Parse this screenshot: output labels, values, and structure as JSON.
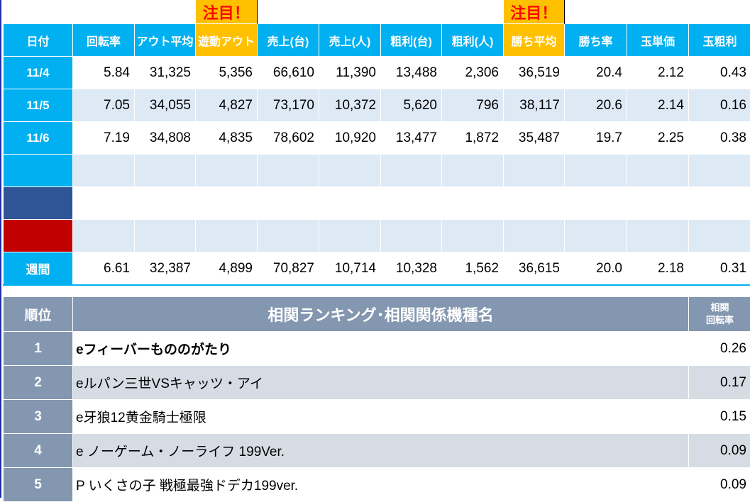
{
  "notes": {
    "left": "注目！",
    "right": "注目！"
  },
  "headers": [
    "日付",
    "回転率",
    "アウト平均",
    "遊動アウト",
    "売上(台)",
    "売上(人)",
    "粗利(台)",
    "粗利(人)",
    "勝ち平均",
    "勝ち率",
    "玉単価",
    "玉粗利"
  ],
  "rows": [
    {
      "date": "11/4",
      "values": [
        "5.84",
        "31,325",
        "5,356",
        "66,610",
        "11,390",
        "13,488",
        "2,306",
        "36,519",
        "20.4",
        "2.12",
        "0.43"
      ]
    },
    {
      "date": "11/5",
      "values": [
        "7.05",
        "34,055",
        "4,827",
        "73,170",
        "10,372",
        "5,620",
        "796",
        "38,117",
        "20.6",
        "2.14",
        "0.16"
      ]
    },
    {
      "date": "11/6",
      "values": [
        "7.19",
        "34,808",
        "4,835",
        "78,602",
        "10,920",
        "13,477",
        "1,872",
        "35,487",
        "19.7",
        "2.25",
        "0.38"
      ]
    }
  ],
  "weekly": {
    "label": "週間",
    "values": [
      "6.61",
      "32,387",
      "4,899",
      "70,827",
      "10,714",
      "10,328",
      "1,562",
      "36,615",
      "20.0",
      "2.18",
      "0.31"
    ]
  },
  "ranking": {
    "rank_header": "順位",
    "title": "相関ランキング･相関関係機種名",
    "value_header_1": "相関",
    "value_header_2": "回転率",
    "items": [
      {
        "rank": "1",
        "name": "eフィーバーもののがたり",
        "value": "0.26"
      },
      {
        "rank": "2",
        "name": "eルパン三世VSキャッツ・アイ",
        "value": "0.17"
      },
      {
        "rank": "3",
        "name": "e牙狼12黄金騎士極限",
        "value": "0.15"
      },
      {
        "rank": "4",
        "name": "e ノーゲーム・ノーライフ 199Ver.",
        "value": "0.09"
      },
      {
        "rank": "5",
        "name": "P いくさの子 戦極最強ドデカ199ver.",
        "value": "0.09"
      }
    ]
  }
}
